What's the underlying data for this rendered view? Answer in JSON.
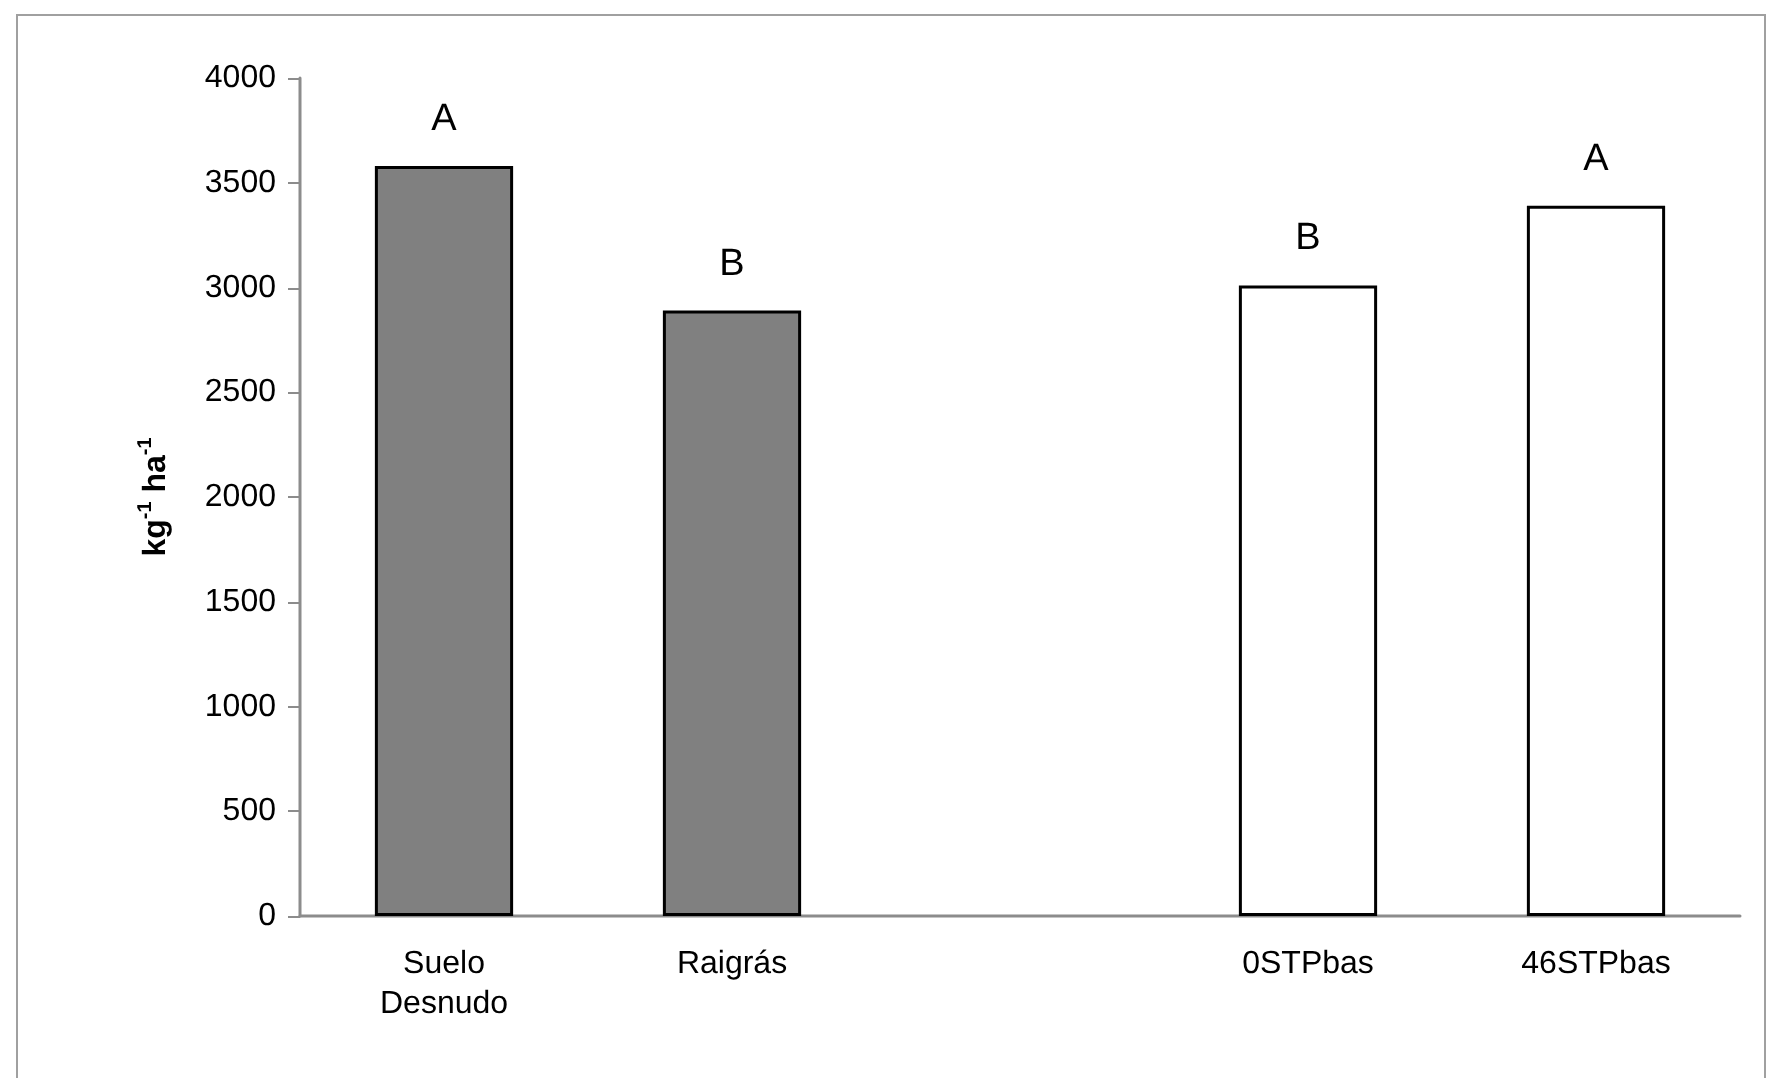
{
  "chart_data": {
    "type": "bar",
    "ylabel": "kg$^{-1}$ ha$^{-1}$",
    "categories": [
      "Suelo\nDesnudo",
      "Raigrás",
      null,
      "0STPbas",
      "46STPbas"
    ],
    "values": [
      3580,
      2890,
      null,
      3010,
      3390
    ],
    "colors": [
      "#808080",
      "#808080",
      null,
      "#ffffff",
      "#ffffff"
    ],
    "value_labels": [
      "A",
      "B",
      null,
      "B",
      "A"
    ],
    "ylim": [
      0,
      4000
    ],
    "yticks": [
      0,
      500,
      1000,
      1500,
      2000,
      2500,
      3000,
      3500,
      4000
    ],
    "grid": false
  }
}
